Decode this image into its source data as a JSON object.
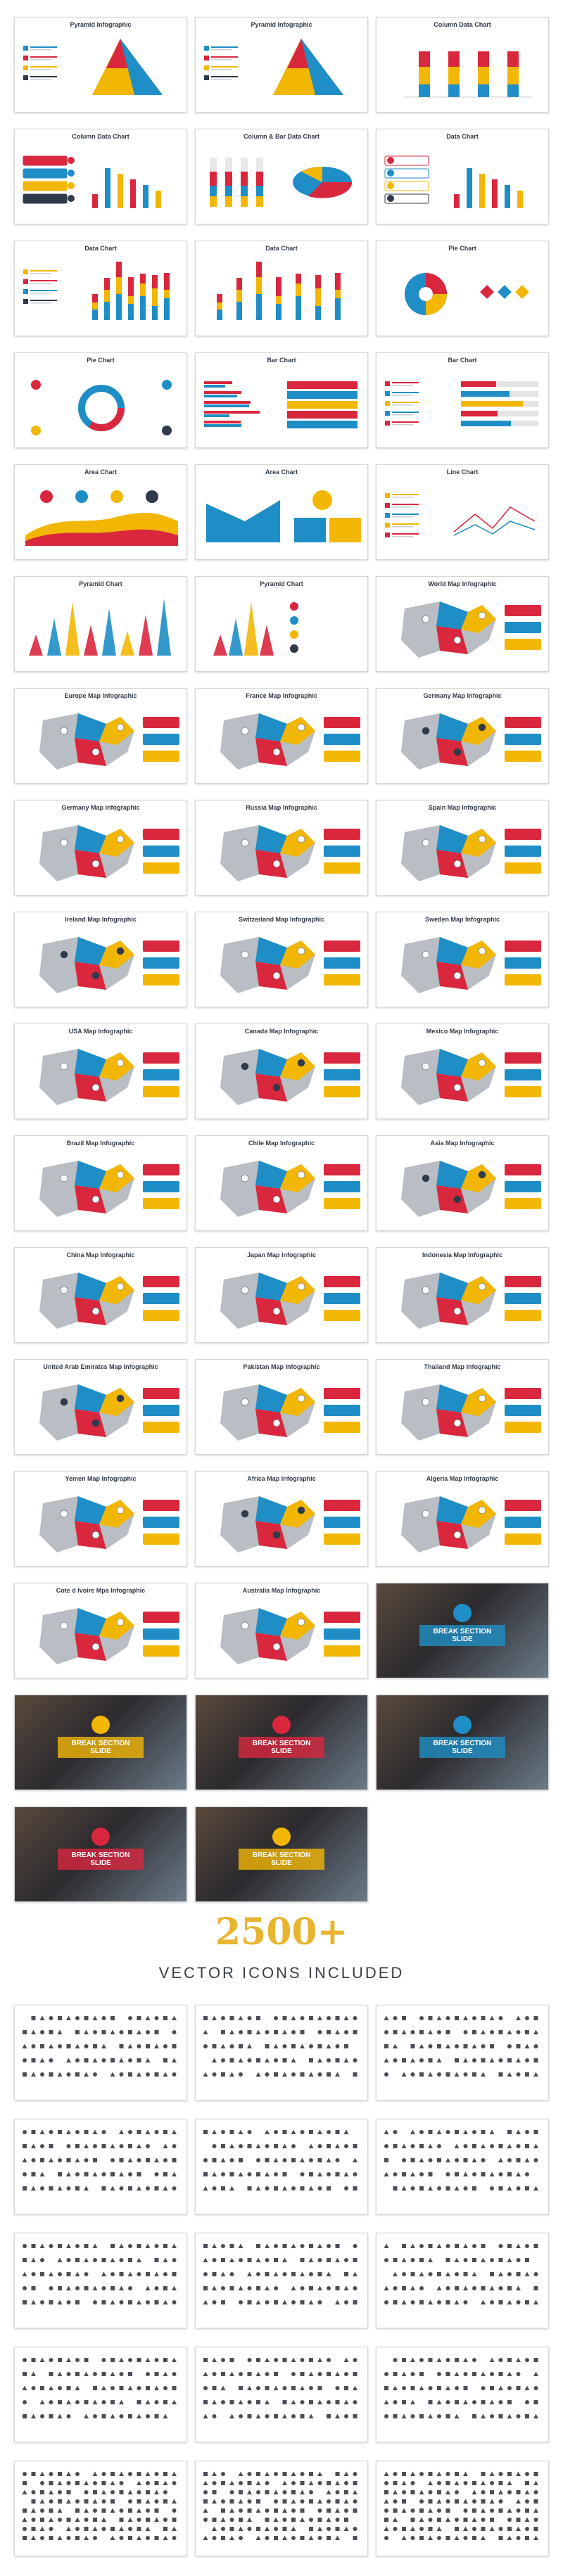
{
  "colors": {
    "red": "#d9273e",
    "blue": "#1f8ec6",
    "yellow": "#f2b705",
    "grey": "#b9bec4",
    "dark": "#2f3a4a"
  },
  "slides": [
    {
      "title": "Pyramid Infographic",
      "kind": "pyramid"
    },
    {
      "title": "Pyramid Infographic",
      "kind": "pyramid"
    },
    {
      "title": "Column Data Chart",
      "kind": "columns3d"
    },
    {
      "title": "Column Data Chart",
      "kind": "columnlist"
    },
    {
      "title": "Column & Bar Data Chart",
      "kind": "columnpie"
    },
    {
      "title": "Data Chart",
      "kind": "datalist"
    },
    {
      "title": "Data Chart",
      "kind": "stacked"
    },
    {
      "title": "Data Chart",
      "kind": "stacked2"
    },
    {
      "title": "Pie Chart",
      "kind": "pie"
    },
    {
      "title": "Pie Chart",
      "kind": "donut"
    },
    {
      "title": "Bar Chart",
      "kind": "bars"
    },
    {
      "title": "Bar Chart",
      "kind": "bars2"
    },
    {
      "title": "Area Chart",
      "kind": "area"
    },
    {
      "title": "Area Chart",
      "kind": "area2"
    },
    {
      "title": "Line Chart",
      "kind": "line"
    },
    {
      "title": "Pyramid Chart",
      "kind": "spikes"
    },
    {
      "title": "Pyramid Chart",
      "kind": "spikes2"
    },
    {
      "title": "World Map Infographic",
      "kind": "map"
    },
    {
      "title": "Europe Map Infographic",
      "kind": "map"
    },
    {
      "title": "France Map Infographic",
      "kind": "map"
    },
    {
      "title": "Germany Map Infographic",
      "kind": "map"
    },
    {
      "title": "Germany Map Infographic",
      "kind": "map"
    },
    {
      "title": "Russia Map Infographic",
      "kind": "map"
    },
    {
      "title": "Spain Map Infographic",
      "kind": "map"
    },
    {
      "title": "Ireland Map Infographic",
      "kind": "map"
    },
    {
      "title": "Switzerland Map Infographic",
      "kind": "map"
    },
    {
      "title": "Sweden Map Infographic",
      "kind": "map"
    },
    {
      "title": "USA Map Infographic",
      "kind": "map"
    },
    {
      "title": "Canada Map Infographic",
      "kind": "map"
    },
    {
      "title": "Mexico Map Infographic",
      "kind": "map"
    },
    {
      "title": "Brazil Map Infographic",
      "kind": "map"
    },
    {
      "title": "Chile Map Infographic",
      "kind": "map"
    },
    {
      "title": "Asia Map Infographic",
      "kind": "map"
    },
    {
      "title": "China Map Infographic",
      "kind": "map"
    },
    {
      "title": "Japan Map Infographic",
      "kind": "map"
    },
    {
      "title": "Indonesia Map Infographic",
      "kind": "map"
    },
    {
      "title": "United Arab Emirates Map Infographic",
      "kind": "map"
    },
    {
      "title": "Pakistan Map Infographic",
      "kind": "map"
    },
    {
      "title": "Thailand Map Infographic",
      "kind": "map"
    },
    {
      "title": "Yemen Map Infographic",
      "kind": "map"
    },
    {
      "title": "Africa Map Infographic",
      "kind": "map"
    },
    {
      "title": "Algeria Map Infographic",
      "kind": "map"
    },
    {
      "title": "Cote d Ivoire Mpa Infographic",
      "kind": "map"
    },
    {
      "title": "Australia Map Infographic",
      "kind": "map"
    },
    {
      "title": "BREAK SECTION SLIDE",
      "kind": "break",
      "accent": "#1f8ec6"
    },
    {
      "title": "BREAK SECTION SLIDE",
      "kind": "break",
      "accent": "#f2b705"
    },
    {
      "title": "BREAK SECTION SLIDE",
      "kind": "break",
      "accent": "#d9273e"
    },
    {
      "title": "BREAK SECTION SLIDE",
      "kind": "break",
      "accent": "#1f8ec6"
    },
    {
      "title": "BREAK SECTION SLIDE",
      "kind": "break",
      "accent": "#d9273e"
    },
    {
      "title": "BREAK SECTION SLIDE",
      "kind": "break",
      "accent": "#f2b705"
    }
  ],
  "promo": {
    "number": "2500+",
    "subtitle": "VECTOR ICONS INCLUDED"
  },
  "icon_sheet_count": 15
}
